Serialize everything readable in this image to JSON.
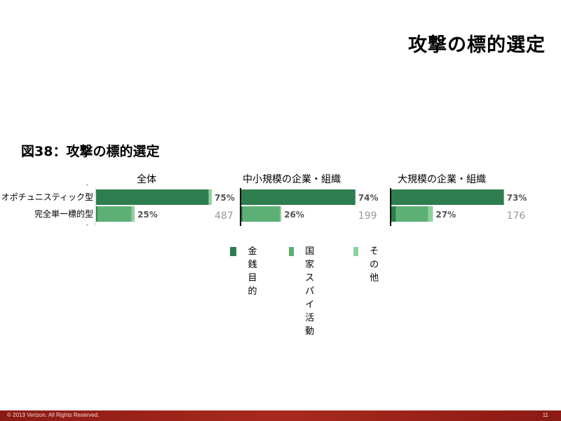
{
  "slide_title": "攻撃の標的選定",
  "figure_title": "図38：攻撃の標的選定",
  "colors": {
    "financial": "#2e7d4f",
    "espionage": "#5cb075",
    "other": "#8fd19e",
    "count_text": "#999999",
    "footer": "#9b231a"
  },
  "chart_data": {
    "type": "bar",
    "orientation": "horizontal",
    "stacked": true,
    "row_labels": [
      "オポチュニスティック型",
      "完全単一標的型"
    ],
    "panels": [
      {
        "title": "全体",
        "count": "487",
        "rows": [
          {
            "financial": 73,
            "espionage": 0,
            "other": 2,
            "label": "75%"
          },
          {
            "financial": 1,
            "espionage": 22,
            "other": 2,
            "label": "25%"
          }
        ]
      },
      {
        "title": "中小規模の企業・組織",
        "count": "199",
        "rows": [
          {
            "financial": 74,
            "espionage": 0,
            "other": 0,
            "label": "74%"
          },
          {
            "financial": 1,
            "espionage": 24,
            "other": 1,
            "label": "26%"
          }
        ]
      },
      {
        "title": "大規模の企業・組織",
        "count": "176",
        "rows": [
          {
            "financial": 73,
            "espionage": 0,
            "other": 0,
            "label": "73%"
          },
          {
            "financial": 3,
            "espionage": 21,
            "other": 3,
            "label": "27%"
          }
        ]
      }
    ],
    "legend": [
      {
        "key": "financial",
        "label": "金銭\n目的"
      },
      {
        "key": "espionage",
        "label": "国家\nスパイ\n活動"
      },
      {
        "key": "other",
        "label": "その他"
      }
    ]
  },
  "footer": {
    "copyright": "© 2013 Verizon. All Rights Reserved.",
    "page_number": "11"
  }
}
